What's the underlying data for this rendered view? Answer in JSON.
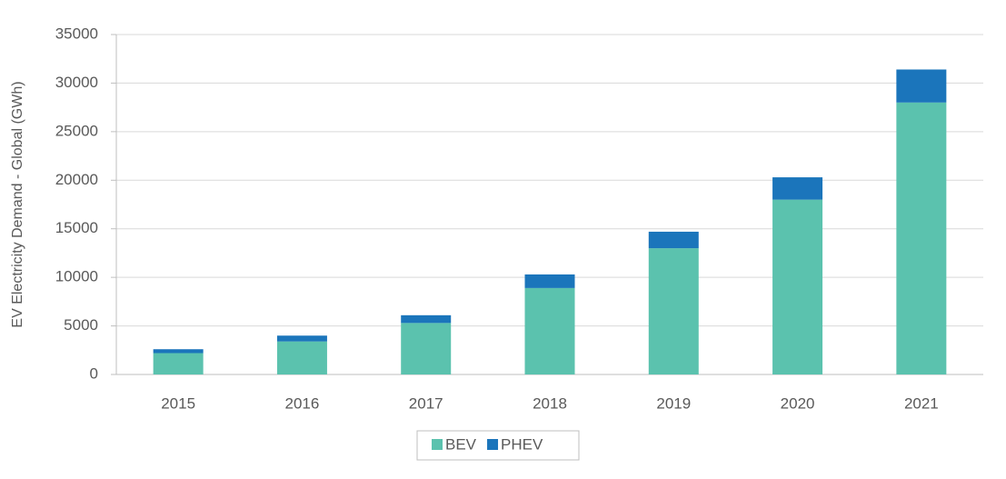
{
  "chart_data": {
    "type": "stacked_bar",
    "y_label": "EV Electricity Demand - Global (GWh)",
    "categories": [
      "2015",
      "2016",
      "2017",
      "2018",
      "2019",
      "2020",
      "2021"
    ],
    "series": [
      {
        "name": "BEV",
        "color": "#5bc2ae",
        "values": [
          2200,
          3400,
          5300,
          8900,
          13000,
          18000,
          28000
        ]
      },
      {
        "name": "PHEV",
        "color": "#1b75bb",
        "values": [
          400,
          600,
          800,
          1400,
          1700,
          2300,
          3400
        ]
      }
    ],
    "ylim": [
      0,
      35000
    ],
    "yticks": [
      0,
      5000,
      10000,
      15000,
      20000,
      25000,
      30000,
      35000
    ],
    "grid": true,
    "legend": "bottom"
  }
}
